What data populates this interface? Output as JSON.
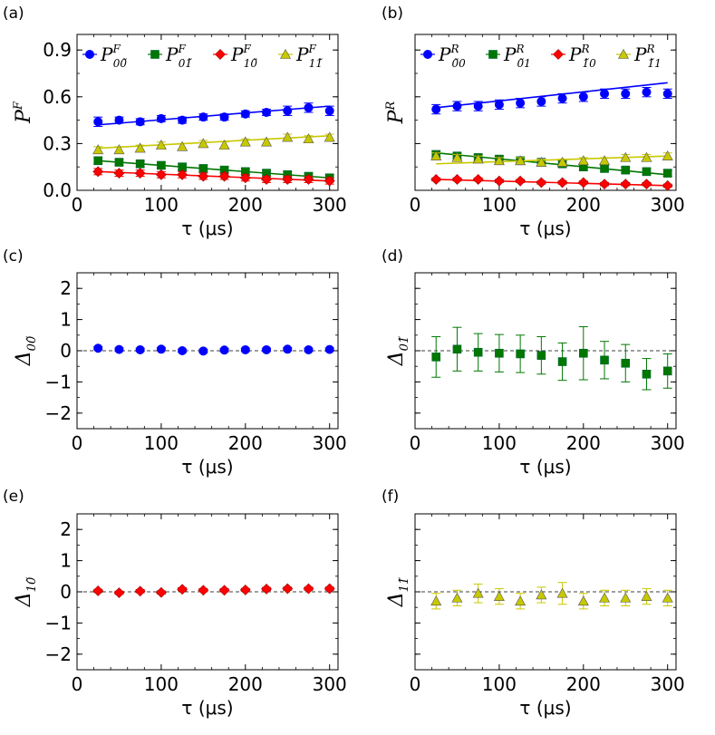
{
  "figure": {
    "xlabel": "τ (μs)",
    "panels": [
      {
        "tag": "(a)",
        "ylabel_main": "P",
        "ylabel_sup": "F"
      },
      {
        "tag": "(b)",
        "ylabel_main": "P",
        "ylabel_sup": "R"
      },
      {
        "tag": "(c)",
        "ylabel_main": "Δ",
        "ylabel_sub": "00̃"
      },
      {
        "tag": "(d)",
        "ylabel_main": "Δ",
        "ylabel_sub": "01̃"
      },
      {
        "tag": "(e)",
        "ylabel_main": "Δ",
        "ylabel_sub": "10̃"
      },
      {
        "tag": "(f)",
        "ylabel_main": "Δ",
        "ylabel_sub": "11̃"
      }
    ]
  },
  "chart_data": [
    {
      "panel": "a",
      "type": "scatter",
      "xlabel": "τ (μs)",
      "ylabel": "P^F",
      "xlim": [
        0,
        310
      ],
      "ylim": [
        0,
        1.0
      ],
      "xticks": [
        0,
        100,
        200,
        300
      ],
      "yticks": [
        0.0,
        0.3,
        0.6,
        0.9
      ],
      "xtick_labels": [
        "0",
        "100",
        "200",
        "300"
      ],
      "ytick_labels": [
        "0.0",
        "0.3",
        "0.6",
        "0.9"
      ],
      "legend": "top",
      "x": [
        25,
        50,
        75,
        100,
        125,
        150,
        175,
        200,
        225,
        250,
        275,
        300
      ],
      "series": [
        {
          "name": "P^F_00̃",
          "label_sup": "F",
          "label_sub": "00̃",
          "color": "#0000ff",
          "marker": "circle",
          "values": [
            0.44,
            0.45,
            0.44,
            0.46,
            0.45,
            0.47,
            0.47,
            0.49,
            0.5,
            0.51,
            0.53,
            0.51
          ],
          "errors": [
            0.03,
            0.02,
            0.02,
            0.02,
            0.02,
            0.02,
            0.02,
            0.02,
            0.02,
            0.03,
            0.03,
            0.03
          ],
          "fit": [
            [
              25,
              0.42
            ],
            [
              300,
              0.54
            ]
          ]
        },
        {
          "name": "P^F_01̃",
          "label_sup": "F",
          "label_sub": "01̃",
          "color": "#007700",
          "marker": "square",
          "values": [
            0.19,
            0.18,
            0.17,
            0.16,
            0.15,
            0.14,
            0.13,
            0.12,
            0.11,
            0.1,
            0.09,
            0.08
          ],
          "errors": [
            0.02,
            0.02,
            0.02,
            0.02,
            0.02,
            0.02,
            0.02,
            0.02,
            0.02,
            0.02,
            0.02,
            0.02
          ],
          "fit": [
            [
              25,
              0.19
            ],
            [
              300,
              0.08
            ]
          ]
        },
        {
          "name": "P^F_10̃",
          "label_sup": "F",
          "label_sub": "10̃",
          "color": "#ff0000",
          "marker": "diamond",
          "values": [
            0.12,
            0.11,
            0.11,
            0.1,
            0.1,
            0.09,
            0.09,
            0.08,
            0.07,
            0.07,
            0.07,
            0.06
          ],
          "errors": [
            0.02,
            0.02,
            0.02,
            0.02,
            0.02,
            0.02,
            0.02,
            0.02,
            0.02,
            0.02,
            0.02,
            0.02
          ],
          "fit": [
            [
              25,
              0.12
            ],
            [
              300,
              0.06
            ]
          ]
        },
        {
          "name": "P^F_11̃",
          "label_sup": "F",
          "label_sub": "11̃",
          "color": "#c8c800",
          "marker": "triangle",
          "values": [
            0.26,
            0.26,
            0.27,
            0.29,
            0.28,
            0.3,
            0.29,
            0.31,
            0.31,
            0.34,
            0.33,
            0.34
          ],
          "errors": [
            0.02,
            0.02,
            0.02,
            0.02,
            0.02,
            0.02,
            0.02,
            0.02,
            0.02,
            0.02,
            0.02,
            0.02
          ],
          "fit": [
            [
              25,
              0.27
            ],
            [
              300,
              0.35
            ]
          ]
        }
      ]
    },
    {
      "panel": "b",
      "type": "scatter",
      "xlabel": "τ (μs)",
      "ylabel": "P^R",
      "xlim": [
        0,
        310
      ],
      "ylim": [
        0,
        1.0
      ],
      "xticks": [
        0,
        100,
        200,
        300
      ],
      "yticks": [
        0.0,
        0.3,
        0.6,
        0.9
      ],
      "xtick_labels": [
        "0",
        "100",
        "200",
        "300"
      ],
      "ytick_labels": [],
      "legend": "top",
      "x": [
        25,
        50,
        75,
        100,
        125,
        150,
        175,
        200,
        225,
        250,
        275,
        300
      ],
      "series": [
        {
          "name": "P^R_0̃0",
          "label_sup": "R",
          "label_sub": "0̃0",
          "color": "#0000ff",
          "marker": "circle",
          "values": [
            0.52,
            0.54,
            0.54,
            0.55,
            0.56,
            0.57,
            0.59,
            0.6,
            0.62,
            0.62,
            0.63,
            0.62
          ],
          "errors": [
            0.03,
            0.03,
            0.03,
            0.03,
            0.03,
            0.03,
            0.03,
            0.03,
            0.03,
            0.03,
            0.03,
            0.03
          ],
          "fit": [
            [
              25,
              0.53
            ],
            [
              300,
              0.69
            ]
          ]
        },
        {
          "name": "P^R_0̃1",
          "label_sup": "R",
          "label_sub": "0̃1",
          "color": "#007700",
          "marker": "square",
          "values": [
            0.23,
            0.22,
            0.21,
            0.2,
            0.19,
            0.18,
            0.17,
            0.15,
            0.14,
            0.13,
            0.12,
            0.11
          ],
          "errors": [
            0.02,
            0.02,
            0.02,
            0.02,
            0.02,
            0.02,
            0.02,
            0.02,
            0.02,
            0.02,
            0.02,
            0.02
          ],
          "fit": [
            [
              25,
              0.24
            ],
            [
              300,
              0.1
            ]
          ]
        },
        {
          "name": "P^R_1̃0",
          "label_sup": "R",
          "label_sub": "1̃0",
          "color": "#ff0000",
          "marker": "diamond",
          "values": [
            0.07,
            0.07,
            0.07,
            0.06,
            0.06,
            0.05,
            0.05,
            0.05,
            0.04,
            0.04,
            0.04,
            0.03
          ],
          "errors": [
            0.01,
            0.01,
            0.01,
            0.01,
            0.01,
            0.01,
            0.01,
            0.01,
            0.01,
            0.01,
            0.01,
            0.01
          ],
          "fit": [
            [
              25,
              0.07
            ],
            [
              300,
              0.03
            ]
          ]
        },
        {
          "name": "P^R_1̃1",
          "label_sup": "R",
          "label_sub": "1̃1",
          "color": "#c8c800",
          "marker": "triangle",
          "values": [
            0.22,
            0.21,
            0.2,
            0.19,
            0.19,
            0.18,
            0.18,
            0.19,
            0.19,
            0.21,
            0.21,
            0.22
          ],
          "errors": [
            0.02,
            0.02,
            0.02,
            0.02,
            0.02,
            0.02,
            0.02,
            0.02,
            0.02,
            0.02,
            0.02,
            0.02
          ],
          "fit": [
            [
              25,
              0.17
            ],
            [
              300,
              0.22
            ]
          ]
        }
      ]
    },
    {
      "panel": "c",
      "type": "scatter",
      "xlabel": "τ (μs)",
      "ylabel": "Δ_00̃",
      "xlim": [
        0,
        310
      ],
      "ylim": [
        -2.5,
        2.5
      ],
      "xticks": [
        0,
        100,
        200,
        300
      ],
      "yticks": [
        -2,
        -1,
        0,
        1,
        2
      ],
      "xtick_labels": [
        "0",
        "100",
        "200",
        "300"
      ],
      "ytick_labels": [
        "−2",
        "−1",
        "0",
        "1",
        "2"
      ],
      "zero_line": true,
      "x": [
        25,
        50,
        75,
        100,
        125,
        150,
        175,
        200,
        225,
        250,
        275,
        300
      ],
      "series": [
        {
          "name": "Δ_00̃",
          "color": "#0000ff",
          "marker": "circle",
          "values": [
            0.08,
            0.04,
            0.03,
            0.05,
            0.0,
            -0.01,
            0.02,
            0.03,
            0.03,
            0.05,
            0.03,
            0.04
          ],
          "errors": [
            0.05,
            0.05,
            0.05,
            0.05,
            0.05,
            0.05,
            0.05,
            0.05,
            0.05,
            0.05,
            0.05,
            0.05
          ]
        }
      ]
    },
    {
      "panel": "d",
      "type": "scatter",
      "xlabel": "τ (μs)",
      "ylabel": "Δ_01̃",
      "xlim": [
        0,
        310
      ],
      "ylim": [
        -2.5,
        2.5
      ],
      "xticks": [
        0,
        100,
        200,
        300
      ],
      "yticks": [
        -2,
        -1,
        0,
        1,
        2
      ],
      "xtick_labels": [
        "0",
        "100",
        "200",
        "300"
      ],
      "ytick_labels": [],
      "zero_line": true,
      "x": [
        25,
        50,
        75,
        100,
        125,
        150,
        175,
        200,
        225,
        250,
        275,
        300
      ],
      "series": [
        {
          "name": "Δ_01̃",
          "color": "#007700",
          "marker": "square",
          "values": [
            -0.2,
            0.05,
            -0.05,
            -0.08,
            -0.1,
            -0.15,
            -0.35,
            -0.08,
            -0.3,
            -0.4,
            -0.75,
            -0.65
          ],
          "errors": [
            0.65,
            0.7,
            0.6,
            0.6,
            0.6,
            0.6,
            0.6,
            0.85,
            0.6,
            0.6,
            0.5,
            0.55
          ]
        }
      ]
    },
    {
      "panel": "e",
      "type": "scatter",
      "xlabel": "τ (μs)",
      "ylabel": "Δ_10̃",
      "xlim": [
        0,
        310
      ],
      "ylim": [
        -2.5,
        2.5
      ],
      "xticks": [
        0,
        100,
        200,
        300
      ],
      "yticks": [
        -2,
        -1,
        0,
        1,
        2
      ],
      "xtick_labels": [
        "0",
        "100",
        "200",
        "300"
      ],
      "ytick_labels": [
        "−2",
        "−1",
        "0",
        "1",
        "2"
      ],
      "zero_line": true,
      "x": [
        25,
        50,
        75,
        100,
        125,
        150,
        175,
        200,
        225,
        250,
        275,
        300
      ],
      "series": [
        {
          "name": "Δ_10̃",
          "color": "#ff0000",
          "marker": "diamond",
          "values": [
            0.03,
            -0.03,
            0.02,
            -0.02,
            0.08,
            0.05,
            0.05,
            0.06,
            0.09,
            0.1,
            0.1,
            0.1
          ],
          "errors": [
            0.05,
            0.05,
            0.05,
            0.05,
            0.05,
            0.05,
            0.05,
            0.05,
            0.05,
            0.05,
            0.05,
            0.05
          ]
        }
      ]
    },
    {
      "panel": "f",
      "type": "scatter",
      "xlabel": "τ (μs)",
      "ylabel": "Δ_11̃",
      "xlim": [
        0,
        310
      ],
      "ylim": [
        -2.5,
        2.5
      ],
      "xticks": [
        0,
        100,
        200,
        300
      ],
      "yticks": [
        -2,
        -1,
        0,
        1,
        2
      ],
      "xtick_labels": [
        "0",
        "100",
        "200",
        "300"
      ],
      "ytick_labels": [],
      "zero_line": true,
      "x": [
        25,
        50,
        75,
        100,
        125,
        150,
        175,
        200,
        225,
        250,
        275,
        300
      ],
      "series": [
        {
          "name": "Δ_11̃",
          "color": "#c8c800",
          "marker": "triangle",
          "values": [
            -0.3,
            -0.2,
            -0.05,
            -0.15,
            -0.3,
            -0.1,
            -0.05,
            -0.3,
            -0.2,
            -0.2,
            -0.15,
            -0.2
          ],
          "errors": [
            0.25,
            0.25,
            0.3,
            0.25,
            0.25,
            0.25,
            0.35,
            0.25,
            0.25,
            0.25,
            0.25,
            0.25
          ]
        }
      ]
    }
  ]
}
